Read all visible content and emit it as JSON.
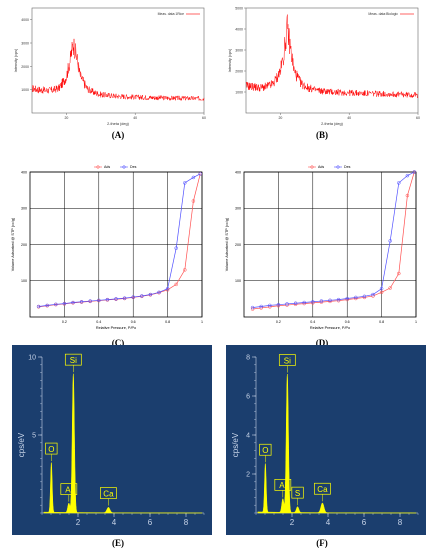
{
  "captions": {
    "A": "(A)",
    "B": "(B)",
    "C": "(C)",
    "D": "(D)",
    "E": "(E)",
    "F": "(F)"
  },
  "chart_data": [
    {
      "id": "A",
      "type": "line",
      "title": "",
      "xlabel": "2-theta (deg)",
      "ylabel": "Intensity (cps)",
      "legend": "Meas. data:1Rice",
      "legend_position": "top-right",
      "series_color": "#ff0000",
      "x": [
        10,
        12,
        14,
        16,
        18,
        20,
        21,
        22,
        23,
        24,
        26,
        28,
        30,
        32,
        35,
        40,
        45,
        50,
        55,
        60
      ],
      "values": [
        1050,
        1000,
        970,
        980,
        1080,
        1550,
        2200,
        3000,
        2400,
        1600,
        1050,
        880,
        790,
        760,
        720,
        680,
        660,
        640,
        630,
        620
      ],
      "xlim": [
        10,
        60
      ],
      "ylim": [
        0,
        4500
      ],
      "yticks": [
        "4000",
        "3000",
        "2000",
        "1000"
      ],
      "xticks": [
        "20",
        "40",
        "60"
      ],
      "grid": false
    },
    {
      "id": "B",
      "type": "line",
      "title": "",
      "xlabel": "2-theta (deg)",
      "ylabel": "Intensity (cps)",
      "legend": "Meas. data:Biologic",
      "legend_position": "top-right",
      "series_color": "#ff0000",
      "x": [
        10,
        12,
        14,
        16,
        18,
        20,
        21,
        22,
        23,
        24,
        26,
        28,
        30,
        32,
        35,
        40,
        45,
        50,
        55,
        60
      ],
      "values": [
        1300,
        1250,
        1200,
        1250,
        1400,
        2000,
        2800,
        4100,
        3000,
        2000,
        1400,
        1200,
        1100,
        1050,
        1000,
        960,
        930,
        910,
        880,
        850
      ],
      "xlim": [
        10,
        60
      ],
      "ylim": [
        0,
        5000
      ],
      "yticks": [
        "5000",
        "4000",
        "3000",
        "2000",
        "1000"
      ],
      "xticks": [
        "20",
        "40",
        "60"
      ],
      "grid": false
    },
    {
      "id": "C",
      "type": "line",
      "title": "",
      "xlabel": "Relative Pressure, P/Po",
      "ylabel": "Volume Adsorbed @ STP (cc/g)",
      "legend_position": "top-center",
      "grid": true,
      "xlim": [
        0,
        1
      ],
      "ylim": [
        0,
        400
      ],
      "xticks": [
        "0.2",
        "0.4",
        "0.6",
        "0.8",
        "1"
      ],
      "yticks": [
        "100",
        "200",
        "300",
        "400"
      ],
      "series": [
        {
          "name": "Ads",
          "color": "#ff5050",
          "x": [
            0.05,
            0.1,
            0.15,
            0.2,
            0.25,
            0.3,
            0.35,
            0.4,
            0.45,
            0.5,
            0.55,
            0.6,
            0.65,
            0.7,
            0.75,
            0.8,
            0.85,
            0.9,
            0.95,
            0.99
          ],
          "y": [
            28,
            31,
            34,
            36,
            39,
            41,
            43,
            45,
            47,
            49,
            51,
            54,
            57,
            61,
            67,
            75,
            90,
            130,
            320,
            395
          ]
        },
        {
          "name": "Des",
          "color": "#5050ff",
          "x": [
            0.05,
            0.1,
            0.15,
            0.2,
            0.25,
            0.3,
            0.35,
            0.4,
            0.45,
            0.5,
            0.55,
            0.6,
            0.65,
            0.7,
            0.75,
            0.8,
            0.85,
            0.9,
            0.95,
            0.99
          ],
          "y": [
            29,
            32,
            35,
            37,
            40,
            42,
            44,
            46,
            48,
            50,
            52,
            55,
            58,
            62,
            68,
            78,
            190,
            370,
            385,
            395
          ]
        }
      ]
    },
    {
      "id": "D",
      "type": "line",
      "title": "",
      "xlabel": "Relative Pressure, P/Po",
      "ylabel": "Volume Adsorbed @ STP (cc/g)",
      "legend_position": "top-center",
      "grid": true,
      "xlim": [
        0,
        1
      ],
      "ylim": [
        0,
        400
      ],
      "xticks": [
        "0.2",
        "0.4",
        "0.6",
        "0.8",
        "1"
      ],
      "yticks": [
        "100",
        "200",
        "300",
        "400"
      ],
      "series": [
        {
          "name": "Ads",
          "color": "#ff5050",
          "x": [
            0.05,
            0.1,
            0.15,
            0.2,
            0.25,
            0.3,
            0.35,
            0.4,
            0.45,
            0.5,
            0.55,
            0.6,
            0.65,
            0.7,
            0.75,
            0.8,
            0.85,
            0.9,
            0.95,
            0.99
          ],
          "y": [
            22,
            25,
            28,
            31,
            33,
            35,
            37,
            39,
            41,
            43,
            45,
            48,
            51,
            54,
            58,
            68,
            80,
            120,
            335,
            400
          ]
        },
        {
          "name": "Des",
          "color": "#5050ff",
          "x": [
            0.05,
            0.1,
            0.15,
            0.2,
            0.25,
            0.3,
            0.35,
            0.4,
            0.45,
            0.5,
            0.55,
            0.6,
            0.65,
            0.7,
            0.75,
            0.8,
            0.85,
            0.9,
            0.95,
            0.99
          ],
          "y": [
            26,
            29,
            32,
            34,
            36,
            38,
            40,
            42,
            44,
            46,
            48,
            51,
            54,
            57,
            62,
            78,
            210,
            370,
            390,
            400
          ]
        }
      ]
    },
    {
      "id": "E",
      "type": "line",
      "title": "",
      "xlabel": "",
      "ylabel": "cps/eV",
      "background": "#1b3e6e",
      "series_color": "#ffff00",
      "xlim": [
        0,
        9
      ],
      "ylim": [
        0,
        10
      ],
      "xticks": [
        "2",
        "4",
        "6",
        "8"
      ],
      "yticks": [
        "5",
        "10"
      ],
      "peaks": [
        {
          "label": "O",
          "x": 0.52,
          "y": 3.2
        },
        {
          "label": "Al",
          "x": 1.49,
          "y": 0.6
        },
        {
          "label": "Si",
          "x": 1.74,
          "y": 8.9
        },
        {
          "label": "Ca",
          "x": 3.69,
          "y": 0.35
        }
      ]
    },
    {
      "id": "F",
      "type": "line",
      "title": "",
      "xlabel": "",
      "ylabel": "cps/eV",
      "background": "#1b3e6e",
      "series_color": "#ffff00",
      "xlim": [
        0,
        9
      ],
      "ylim": [
        0,
        8
      ],
      "xticks": [
        "2",
        "4",
        "6",
        "8"
      ],
      "yticks": [
        "2",
        "4",
        "6",
        "8"
      ],
      "peaks": [
        {
          "label": "O",
          "x": 0.52,
          "y": 2.5
        },
        {
          "label": "Al",
          "x": 1.49,
          "y": 0.7
        },
        {
          "label": "Si",
          "x": 1.74,
          "y": 7.1
        },
        {
          "label": "S",
          "x": 2.31,
          "y": 0.3
        },
        {
          "label": "Ca",
          "x": 3.69,
          "y": 0.5
        }
      ]
    }
  ]
}
